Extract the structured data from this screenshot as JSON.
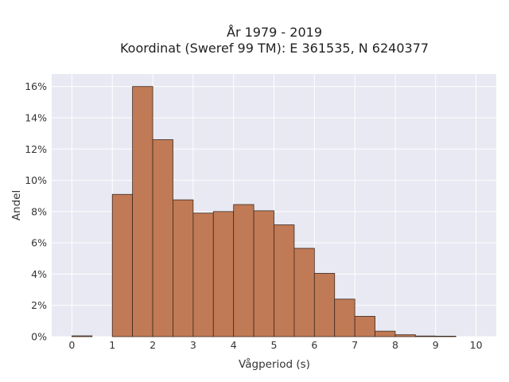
{
  "chart_data": {
    "type": "bar",
    "title_line1": "År 1979 - 2019",
    "title_line2": "Koordinat (Sweref 99 TM): E 361535, N 6240377",
    "xlabel": "Vågperiod (s)",
    "ylabel": "Andel",
    "xlim": [
      -0.5,
      10.5
    ],
    "ylim": [
      0,
      16.8
    ],
    "x_ticks": [
      0,
      1,
      2,
      3,
      4,
      5,
      6,
      7,
      8,
      9,
      10
    ],
    "y_ticks": [
      0,
      2,
      4,
      6,
      8,
      10,
      12,
      14,
      16
    ],
    "y_tick_suffix": "%",
    "bin_width": 0.5,
    "bins": [
      {
        "start": 0.0,
        "value": 0.05
      },
      {
        "start": 1.0,
        "value": 9.1
      },
      {
        "start": 1.5,
        "value": 16.0
      },
      {
        "start": 2.0,
        "value": 12.6
      },
      {
        "start": 2.5,
        "value": 8.75
      },
      {
        "start": 3.0,
        "value": 7.9
      },
      {
        "start": 3.5,
        "value": 8.0
      },
      {
        "start": 4.0,
        "value": 8.45
      },
      {
        "start": 4.5,
        "value": 8.05
      },
      {
        "start": 5.0,
        "value": 7.15
      },
      {
        "start": 5.5,
        "value": 5.65
      },
      {
        "start": 6.0,
        "value": 4.05
      },
      {
        "start": 6.5,
        "value": 2.4
      },
      {
        "start": 7.0,
        "value": 1.3
      },
      {
        "start": 7.5,
        "value": 0.35
      },
      {
        "start": 8.0,
        "value": 0.12
      },
      {
        "start": 8.5,
        "value": 0.04
      },
      {
        "start": 9.0,
        "value": 0.03
      }
    ],
    "grid": true,
    "colors": {
      "bar": "#c07a55",
      "bar_edge": "#3d2a1f",
      "plot_bg": "#e8e9f2",
      "grid": "#ffffff"
    }
  }
}
